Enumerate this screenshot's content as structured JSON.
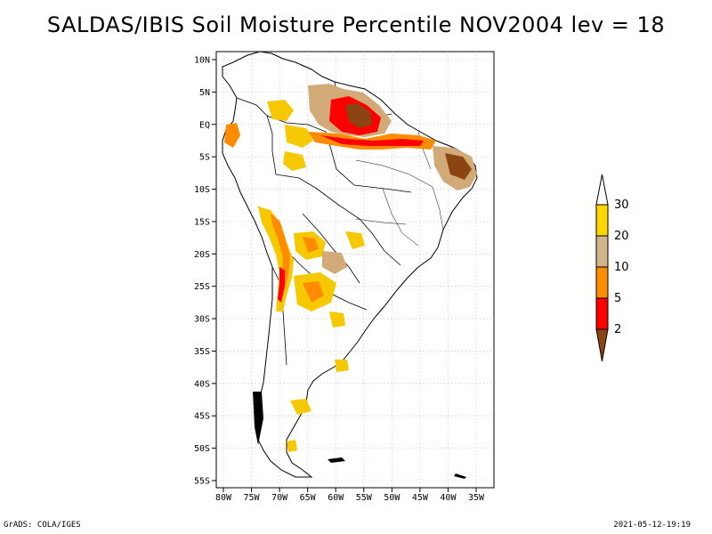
{
  "title": "SALDAS/IBIS Soil Moisture Percentile NOV2004 lev = 18",
  "footer": {
    "left": "GrADS: COLA/IGES",
    "right": "2021-05-12-19:19"
  },
  "axes": {
    "lat_labels": [
      "10N",
      "5N",
      "EQ",
      "5S",
      "10S",
      "15S",
      "20S",
      "25S",
      "30S",
      "35S",
      "40S",
      "45S",
      "50S",
      "55S"
    ],
    "lat_values": [
      10,
      5,
      0,
      -5,
      -10,
      -15,
      -20,
      -25,
      -30,
      -35,
      -40,
      -45,
      -50,
      -55
    ],
    "lon_labels": [
      "80W",
      "75W",
      "70W",
      "65W",
      "60W",
      "55W",
      "50W",
      "45W",
      "40W",
      "35W"
    ],
    "lon_values": [
      -80,
      -75,
      -70,
      -65,
      -60,
      -55,
      -50,
      -45,
      -40,
      -35
    ]
  },
  "legend": {
    "labels": [
      "30",
      "20",
      "10",
      "5",
      "2"
    ],
    "colors": [
      "#ffffff",
      "#ffd700",
      "#d2b48c",
      "#ff8c00",
      "#ff0000",
      "#8b4513"
    ]
  },
  "palette": {
    "gold": "#f5c800",
    "tan": "#d2aa78",
    "orange": "#ff8c00",
    "red": "#ff0000",
    "brown": "#8b4513"
  }
}
